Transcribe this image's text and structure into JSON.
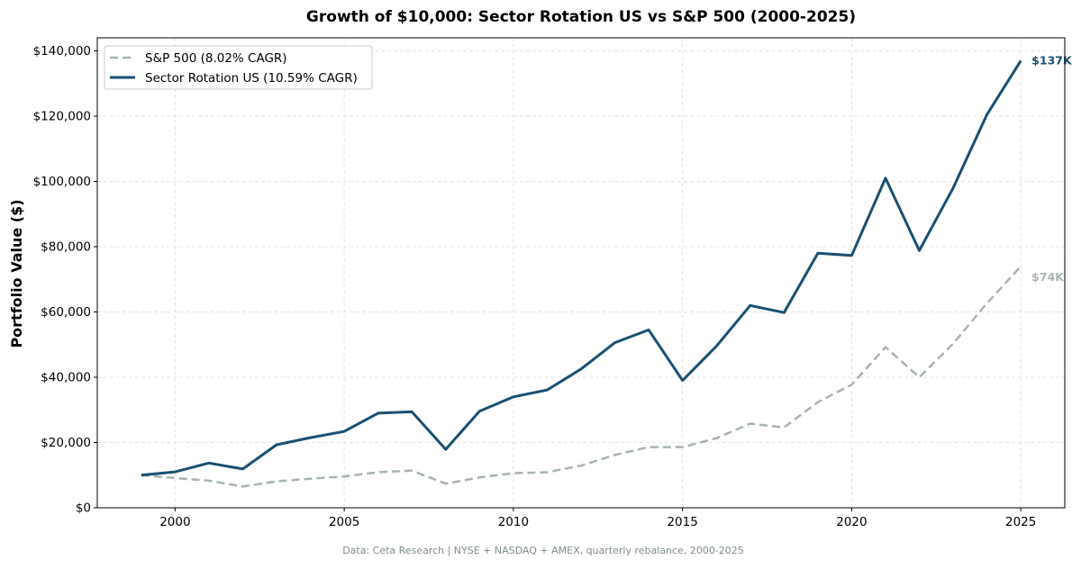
{
  "chart_data": {
    "type": "line",
    "title": "Growth of $10,000: Sector Rotation US vs S&P 500 (2000-2025)",
    "xlabel": "",
    "ylabel": "Portfolio Value ($)",
    "footnote": "Data: Ceta Research | NYSE + NASDAQ + AMEX, quarterly rebalance, 2000-2025",
    "x": [
      1999,
      2000,
      2001,
      2002,
      2003,
      2004,
      2005,
      2006,
      2007,
      2008,
      2009,
      2010,
      2011,
      2012,
      2013,
      2014,
      2015,
      2016,
      2017,
      2018,
      2019,
      2020,
      2021,
      2022,
      2023,
      2024,
      2025
    ],
    "xlim": [
      1997.7,
      2026.3
    ],
    "ylim": [
      0,
      144000
    ],
    "xticks": [
      2000,
      2005,
      2010,
      2015,
      2020,
      2025
    ],
    "xtick_labels": [
      "2000",
      "2005",
      "2010",
      "2015",
      "2020",
      "2025"
    ],
    "yticks": [
      0,
      20000,
      40000,
      60000,
      80000,
      100000,
      120000,
      140000
    ],
    "ytick_labels": [
      "$0",
      "$20,000",
      "$40,000",
      "$60,000",
      "$80,000",
      "$100,000",
      "$120,000",
      "$140,000"
    ],
    "grid": true,
    "legend_position": "top-left",
    "series": [
      {
        "name": "S&P 500 (8.02% CAGR)",
        "color": "#a8b4b4",
        "style": "dashed",
        "end_label": "$74K",
        "values": [
          10000,
          9100,
          8300,
          6500,
          8100,
          8900,
          9600,
          10900,
          11400,
          7400,
          9300,
          10600,
          10900,
          12900,
          16200,
          18600,
          18600,
          21300,
          25800,
          24600,
          32400,
          37700,
          49200,
          40000,
          50300,
          62700,
          74000
        ]
      },
      {
        "name": "Sector Rotation US (10.59% CAGR)",
        "color": "#1a4f72",
        "style": "solid",
        "end_label": "$137K",
        "values": [
          10000,
          11000,
          13700,
          11900,
          19300,
          21500,
          23400,
          29000,
          29400,
          17900,
          29600,
          34000,
          36100,
          42500,
          50600,
          54500,
          39000,
          49500,
          62000,
          59800,
          78000,
          77300,
          101000,
          78800,
          98000,
          120500,
          137000
        ]
      }
    ]
  }
}
